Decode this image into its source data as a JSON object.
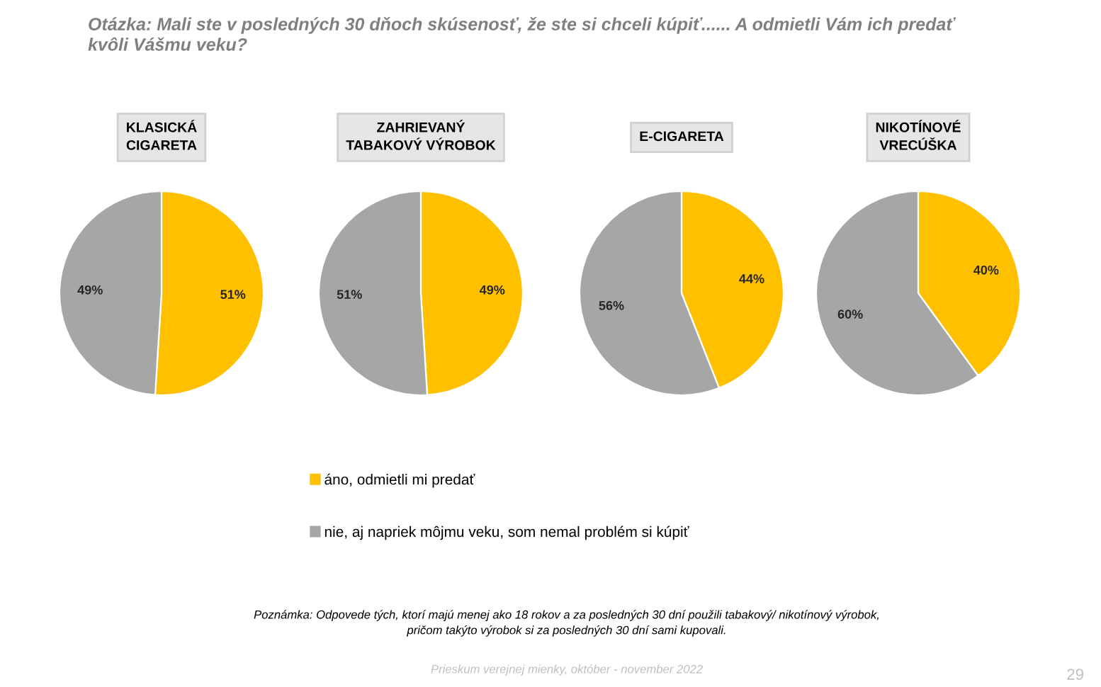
{
  "chart_data": [
    {
      "type": "other",
      "title": "Otázka: Mali ste v posledných 30 dňoch skúsenosť, že ste si chceli kúpiť...... A odmietli Vám ich predať\nkvôli Vášmu veku?",
      "annotations": [
        "Poznámka: Odpovede tých, ktorí majú menej ako 18 rokov a za posledných 30 dní použili tabakový/ nikotínový výrobok,\npričom takýto výrobok si za posledných 30 dní sami kupovali.",
        "Prieskum verejnej mienky, október - november 2022",
        "29"
      ]
    },
    {
      "type": "pie",
      "title": "KLASICKÁ\nCIGARETA",
      "categories": [
        "áno, odmietli mi predať",
        "nie, aj napriek môjmu veku, som nemal problém si kúpiť"
      ],
      "values": [
        51,
        49
      ],
      "value_labels": [
        "51%",
        "49%"
      ],
      "colors": [
        "#ffc000",
        "#a6a6a6"
      ],
      "legend": "bottom"
    },
    {
      "type": "pie",
      "title": "ZAHRIEVANÝ\nTABAKOVÝ VÝROBOK",
      "values": [
        49,
        51
      ],
      "value_labels": [
        "49%",
        "51%"
      ],
      "colors": [
        "#ffc000",
        "#a6a6a6"
      ]
    },
    {
      "type": "pie",
      "title": "E-CIGARETA",
      "values": [
        44,
        56
      ],
      "value_labels": [
        "44%",
        "56%"
      ],
      "colors": [
        "#ffc000",
        "#a6a6a6"
      ]
    },
    {
      "type": "pie",
      "title": "NIKOTÍNOVÉ\nVRECÚŠKA",
      "values": [
        40,
        60
      ],
      "value_labels": [
        "40%",
        "60%"
      ],
      "colors": [
        "#ffc000",
        "#a6a6a6"
      ]
    }
  ]
}
